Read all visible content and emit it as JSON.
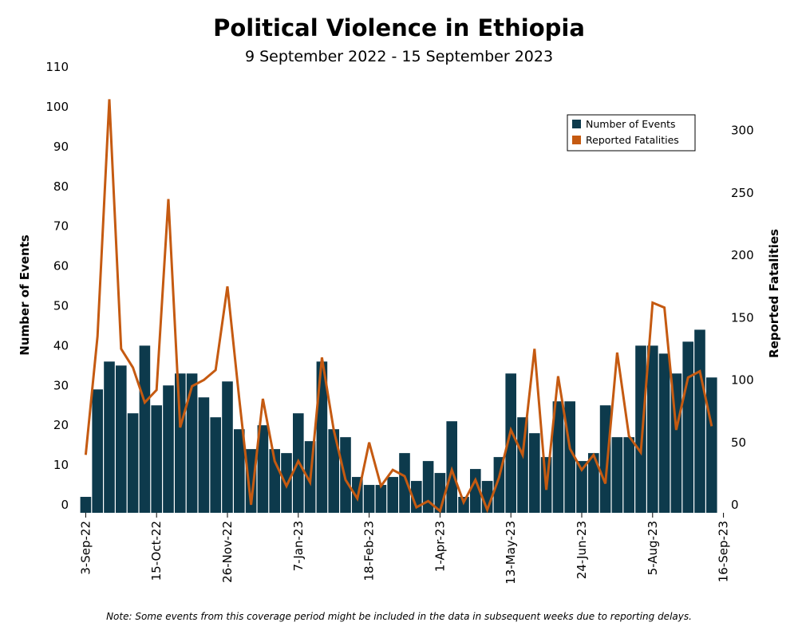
{
  "chart_data": {
    "type": "bar",
    "title": "Political Violence in Ethiopia",
    "subtitle": "9 September 2022 - 15 September 2023",
    "ylabel": "Number of Events",
    "y2label": "Reported Fatalities",
    "ylim": [
      0,
      110
    ],
    "y2lim": [
      0,
      320
    ],
    "yticks": [
      0,
      10,
      20,
      30,
      40,
      50,
      60,
      70,
      80,
      90,
      100,
      110
    ],
    "y2ticks": [
      0,
      50,
      100,
      150,
      200,
      250,
      300
    ],
    "x_tick_labels": [
      "3-Sep-22",
      "15-Oct-22",
      "26-Nov-22",
      "7-Jan-23",
      "18-Feb-23",
      "1-Apr-23",
      "13-May-23",
      "24-Jun-23",
      "5-Aug-23",
      "16-Sep-23"
    ],
    "x_tick_week_index": [
      0,
      6,
      12,
      18,
      24,
      30,
      36,
      42,
      48,
      54
    ],
    "legend_position": "top-right",
    "colors": {
      "events": "#0d3a4c",
      "fatalities": "#c55a11"
    },
    "series": [
      {
        "name": "Number of Events",
        "kind": "bar",
        "axis": "left",
        "values": [
          2,
          29,
          36,
          35,
          23,
          40,
          25,
          30,
          33,
          33,
          27,
          22,
          31,
          19,
          14,
          20,
          14,
          13,
          23,
          16,
          36,
          19,
          17,
          7,
          5,
          5,
          7,
          13,
          6,
          11,
          8,
          21,
          2,
          9,
          6,
          12,
          33,
          22,
          18,
          12,
          26,
          26,
          11,
          13,
          25,
          17,
          17,
          40,
          40,
          38,
          33,
          41,
          44,
          32
        ]
      },
      {
        "name": "Reported Fatalities",
        "kind": "line",
        "axis": "right",
        "values": [
          40,
          135,
          325,
          125,
          110,
          82,
          92,
          245,
          62,
          95,
          100,
          108,
          175,
          85,
          0,
          85,
          35,
          15,
          35,
          18,
          118,
          60,
          20,
          5,
          50,
          15,
          28,
          23,
          -2,
          3,
          -5,
          28,
          2,
          20,
          -4,
          22,
          60,
          40,
          125,
          12,
          103,
          45,
          28,
          40,
          17,
          122,
          55,
          42,
          162,
          158,
          60,
          102,
          107,
          63
        ]
      }
    ]
  },
  "footnote": "Note: Some events from this coverage period might be included in the data in subsequent weeks due to reporting delays."
}
